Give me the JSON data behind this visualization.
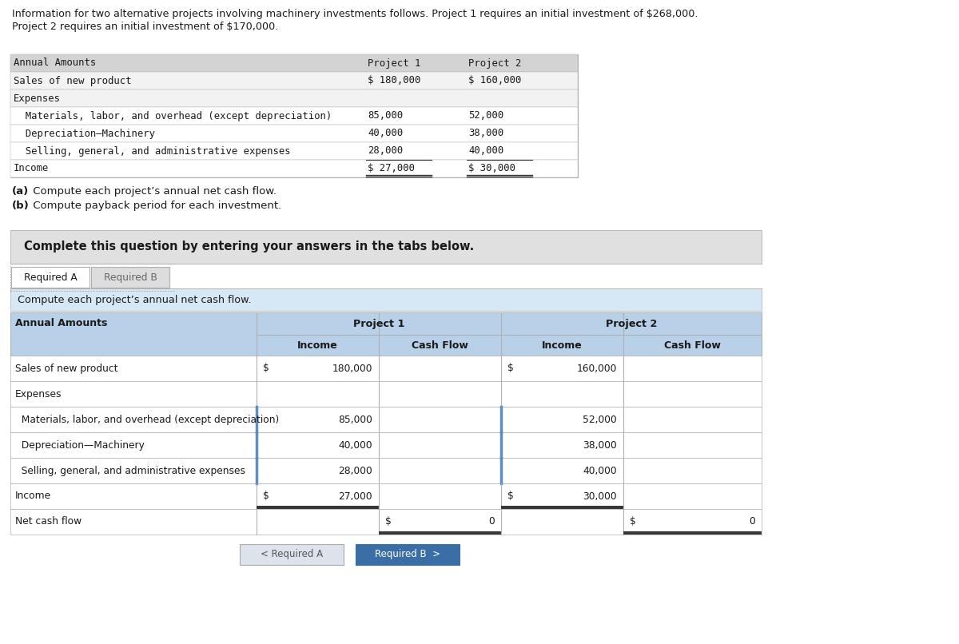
{
  "header_line1": "Information for two alternative projects involving machinery investments follows. Project 1 requires an initial investment of $268,000.",
  "header_line2": "Project 2 requires an initial investment of $170,000.",
  "top_table_rows": [
    [
      "Annual Amounts",
      "Project 1",
      "Project 2"
    ],
    [
      "Sales of new product",
      "$ 180,000",
      "$ 160,000"
    ],
    [
      "Expenses",
      "",
      ""
    ],
    [
      "  Materials, labor, and overhead (except depreciation)",
      "85,000",
      "52,000"
    ],
    [
      "  Depreciation–Machinery",
      "40,000",
      "38,000"
    ],
    [
      "  Selling, general, and administrative expenses",
      "28,000",
      "40,000"
    ],
    [
      "Income",
      "$ 27,000",
      "$ 30,000"
    ]
  ],
  "instructions": [
    {
      "bold": "(a)",
      "rest": " Compute each project’s annual net cash flow."
    },
    {
      "bold": "(b)",
      "rest": " Compute payback period for each investment."
    }
  ],
  "complete_text": "Complete this question by entering your answers in the tabs below.",
  "tab_a": "Required A",
  "tab_b": "Required B",
  "section_title": "Compute each project’s annual net cash flow.",
  "bottom_rows": [
    {
      "label": "Sales of new product",
      "p1i": "$",
      "p1iv": "180,000",
      "p1c": "",
      "p1cv": "",
      "p2i": "$",
      "p2iv": "160,000",
      "p2c": "",
      "p2cv": ""
    },
    {
      "label": "Expenses",
      "p1i": "",
      "p1iv": "",
      "p1c": "",
      "p1cv": "",
      "p2i": "",
      "p2iv": "",
      "p2c": "",
      "p2cv": ""
    },
    {
      "label": "  Materials, labor, and overhead (except depreciation)",
      "p1i": "",
      "p1iv": "85,000",
      "p1c": "",
      "p1cv": "",
      "p2i": "",
      "p2iv": "52,000",
      "p2c": "",
      "p2cv": ""
    },
    {
      "label": "  Depreciation—Machinery",
      "p1i": "",
      "p1iv": "40,000",
      "p1c": "",
      "p1cv": "",
      "p2i": "",
      "p2iv": "38,000",
      "p2c": "",
      "p2cv": ""
    },
    {
      "label": "  Selling, general, and administrative expenses",
      "p1i": "",
      "p1iv": "28,000",
      "p1c": "",
      "p1cv": "",
      "p2i": "",
      "p2iv": "40,000",
      "p2c": "",
      "p2cv": ""
    },
    {
      "label": "Income",
      "p1i": "$",
      "p1iv": "27,000",
      "p1c": "",
      "p1cv": "",
      "p2i": "$",
      "p2iv": "30,000",
      "p2c": "",
      "p2cv": ""
    },
    {
      "label": "Net cash flow",
      "p1i": "",
      "p1iv": "",
      "p1c": "$",
      "p1cv": "0",
      "p2i": "",
      "p2iv": "",
      "p2c": "$",
      "p2cv": "0"
    }
  ],
  "btn_a": "< Required A",
  "btn_b": "Required B  >",
  "colors": {
    "white": "#ffffff",
    "light_gray": "#e4e4e4",
    "gray_bg": "#d8d8d8",
    "medium_gray": "#b0b0b0",
    "dark_gray": "#666666",
    "black": "#1a1a1a",
    "top_hdr_bg": "#d3d3d3",
    "complete_bg": "#e0e0e0",
    "section_blue": "#d6e8f5",
    "hdr_blue": "#b8d0e8",
    "blue_btn": "#3a6ea5",
    "blue_divider": "#5a8fc0",
    "tab_border": "#a0a0a0"
  }
}
